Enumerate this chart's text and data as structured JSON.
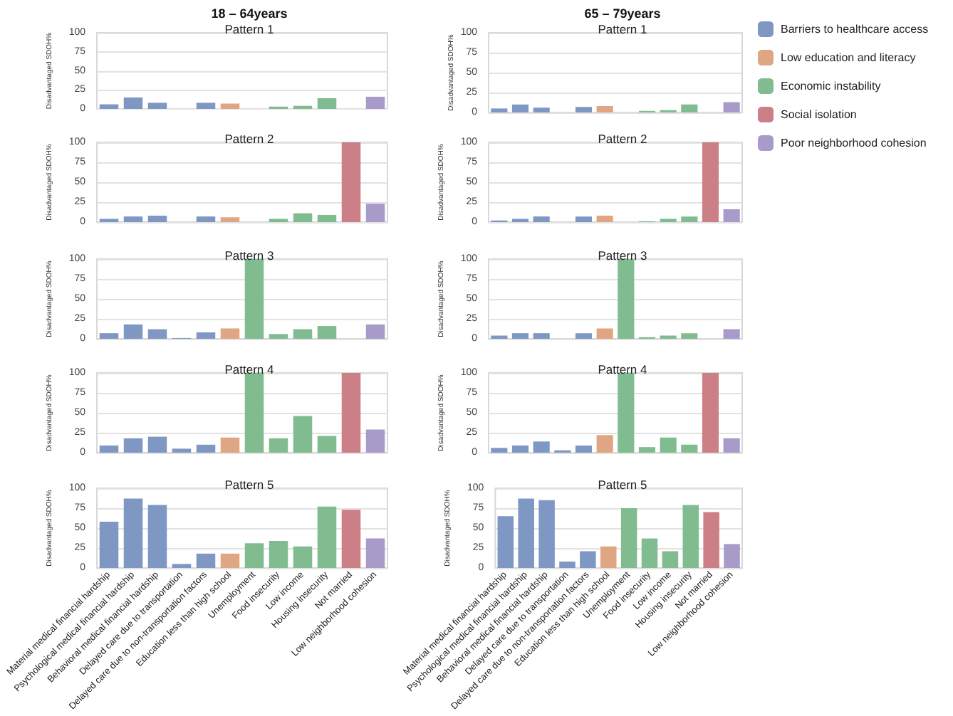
{
  "chart_data": [
    {
      "type": "bar",
      "subtitle": "18 – 64years",
      "title": "Pattern 1",
      "ylabel": "Disadvantaged SDOH%",
      "categories": [
        null,
        null,
        null,
        null,
        null,
        null,
        null,
        null,
        null,
        null,
        null,
        null
      ],
      "ylim": [
        0,
        100
      ],
      "yticks": [
        0,
        25,
        50,
        75,
        100
      ],
      "grid": "y",
      "tick_labels": "y",
      "series": [
        {
          "color": "#7f97c3",
          "values": [
            6,
            15,
            8,
            0,
            8,
            null,
            null,
            null,
            null,
            null,
            null,
            null
          ]
        },
        {
          "color": "#e0a583",
          "values": [
            null,
            null,
            null,
            null,
            null,
            7,
            null,
            null,
            null,
            null,
            null,
            null
          ]
        },
        {
          "color": "#80bc8f",
          "values": [
            null,
            null,
            null,
            null,
            null,
            null,
            0,
            3,
            4,
            14,
            null,
            null
          ]
        },
        {
          "color": "#cc7f86",
          "values": [
            null,
            null,
            null,
            null,
            null,
            null,
            null,
            null,
            null,
            null,
            0,
            null
          ]
        },
        {
          "color": "#a89bc9",
          "values": [
            null,
            null,
            null,
            null,
            null,
            null,
            null,
            null,
            null,
            null,
            null,
            16
          ]
        }
      ]
    },
    {
      "type": "bar",
      "subtitle": "65 – 79years",
      "title": "Pattern 1",
      "ylabel": "Disadvantaged SDOH%",
      "categories": [
        null,
        null,
        null,
        null,
        null,
        null,
        null,
        null,
        null,
        null,
        null,
        null
      ],
      "ylim": [
        0,
        100
      ],
      "yticks": [
        0,
        25,
        50,
        75,
        100
      ],
      "grid": "y",
      "tick_labels": "y",
      "legend": "right",
      "series": [
        {
          "name": "Barriers to healthcare access",
          "color": "#7f97c3",
          "values": [
            5,
            10,
            6,
            0,
            7,
            null,
            null,
            null,
            null,
            null,
            null,
            null
          ]
        },
        {
          "name": "Low education and literacy",
          "color": "#e0a583",
          "values": [
            null,
            null,
            null,
            null,
            null,
            8,
            null,
            null,
            null,
            null,
            null,
            null
          ]
        },
        {
          "name": "Economic instability",
          "color": "#80bc8f",
          "values": [
            null,
            null,
            null,
            null,
            null,
            null,
            0,
            2,
            3,
            10,
            null,
            null
          ]
        },
        {
          "name": "Social isolation",
          "color": "#cc7f86",
          "values": [
            null,
            null,
            null,
            null,
            null,
            null,
            null,
            null,
            null,
            null,
            0,
            null
          ]
        },
        {
          "name": "Poor neighborhood cohesion",
          "color": "#a89bc9",
          "values": [
            null,
            null,
            null,
            null,
            null,
            null,
            null,
            null,
            null,
            null,
            null,
            13
          ]
        }
      ]
    },
    {
      "type": "bar",
      "title": "Pattern 2",
      "ylabel": "Disadvantaged SDOH%",
      "categories": [
        null,
        null,
        null,
        null,
        null,
        null,
        null,
        null,
        null,
        null,
        null,
        null
      ],
      "ylim": [
        0,
        100
      ],
      "yticks": [
        0,
        25,
        50,
        75,
        100
      ],
      "grid": "y",
      "tick_labels": "y",
      "series": [
        {
          "color": "#7f97c3",
          "values": [
            4,
            7,
            8,
            0,
            7,
            null,
            null,
            null,
            null,
            null,
            null,
            null
          ]
        },
        {
          "color": "#e0a583",
          "values": [
            null,
            null,
            null,
            null,
            null,
            6,
            null,
            null,
            null,
            null,
            null,
            null
          ]
        },
        {
          "color": "#80bc8f",
          "values": [
            null,
            null,
            null,
            null,
            null,
            null,
            0,
            4,
            11,
            9,
            null,
            null
          ]
        },
        {
          "color": "#cc7f86",
          "values": [
            null,
            null,
            null,
            null,
            null,
            null,
            null,
            null,
            null,
            null,
            100,
            null
          ]
        },
        {
          "color": "#a89bc9",
          "values": [
            null,
            null,
            null,
            null,
            null,
            null,
            null,
            null,
            null,
            null,
            null,
            23
          ]
        }
      ]
    },
    {
      "type": "bar",
      "title": "Pattern 2",
      "ylabel": "Disadvantaged SDOH%",
      "categories": [
        null,
        null,
        null,
        null,
        null,
        null,
        null,
        null,
        null,
        null,
        null,
        null
      ],
      "ylim": [
        0,
        100
      ],
      "yticks": [
        0,
        25,
        50,
        75,
        100
      ],
      "grid": "y",
      "tick_labels": "y",
      "series": [
        {
          "color": "#7f97c3",
          "values": [
            2,
            4,
            7,
            0,
            7,
            null,
            null,
            null,
            null,
            null,
            null,
            null
          ]
        },
        {
          "color": "#e0a583",
          "values": [
            null,
            null,
            null,
            null,
            null,
            8,
            null,
            null,
            null,
            null,
            null,
            null
          ]
        },
        {
          "color": "#80bc8f",
          "values": [
            null,
            null,
            null,
            null,
            null,
            null,
            0,
            1,
            4,
            7,
            null,
            null
          ]
        },
        {
          "color": "#cc7f86",
          "values": [
            null,
            null,
            null,
            null,
            null,
            null,
            null,
            null,
            null,
            null,
            100,
            null
          ]
        },
        {
          "color": "#a89bc9",
          "values": [
            null,
            null,
            null,
            null,
            null,
            null,
            null,
            null,
            null,
            null,
            null,
            16
          ]
        }
      ]
    },
    {
      "type": "bar",
      "title": "Pattern 3",
      "ylabel": "Disadvantaged SDOH%",
      "categories": [
        null,
        null,
        null,
        null,
        null,
        null,
        null,
        null,
        null,
        null,
        null,
        null
      ],
      "ylim": [
        0,
        100
      ],
      "yticks": [
        0,
        25,
        50,
        75,
        100
      ],
      "grid": "y",
      "tick_labels": "y",
      "series": [
        {
          "color": "#7f97c3",
          "values": [
            7,
            18,
            12,
            1,
            8,
            null,
            null,
            null,
            null,
            null,
            null,
            null
          ]
        },
        {
          "color": "#e0a583",
          "values": [
            null,
            null,
            null,
            null,
            null,
            13,
            null,
            null,
            null,
            null,
            null,
            null
          ]
        },
        {
          "color": "#80bc8f",
          "values": [
            null,
            null,
            null,
            null,
            null,
            null,
            100,
            6,
            12,
            16,
            null,
            null
          ]
        },
        {
          "color": "#cc7f86",
          "values": [
            null,
            null,
            null,
            null,
            null,
            null,
            null,
            null,
            null,
            null,
            0,
            null
          ]
        },
        {
          "color": "#a89bc9",
          "values": [
            null,
            null,
            null,
            null,
            null,
            null,
            null,
            null,
            null,
            null,
            null,
            18
          ]
        }
      ]
    },
    {
      "type": "bar",
      "title": "Pattern 3",
      "ylabel": "Disadvantaged SDOH%",
      "categories": [
        null,
        null,
        null,
        null,
        null,
        null,
        null,
        null,
        null,
        null,
        null,
        null
      ],
      "ylim": [
        0,
        100
      ],
      "yticks": [
        0,
        25,
        50,
        75,
        100
      ],
      "grid": "y",
      "tick_labels": "y",
      "series": [
        {
          "color": "#7f97c3",
          "values": [
            4,
            7,
            7,
            0,
            7,
            null,
            null,
            null,
            null,
            null,
            null,
            null
          ]
        },
        {
          "color": "#e0a583",
          "values": [
            null,
            null,
            null,
            null,
            null,
            13,
            null,
            null,
            null,
            null,
            null,
            null
          ]
        },
        {
          "color": "#80bc8f",
          "values": [
            null,
            null,
            null,
            null,
            null,
            null,
            100,
            2,
            4,
            7,
            null,
            null
          ]
        },
        {
          "color": "#cc7f86",
          "values": [
            null,
            null,
            null,
            null,
            null,
            null,
            null,
            null,
            null,
            null,
            0,
            null
          ]
        },
        {
          "color": "#a89bc9",
          "values": [
            null,
            null,
            null,
            null,
            null,
            null,
            null,
            null,
            null,
            null,
            null,
            12
          ]
        }
      ]
    },
    {
      "type": "bar",
      "title": "Pattern 4",
      "ylabel": "Disadvantaged SDOH%",
      "categories": [
        null,
        null,
        null,
        null,
        null,
        null,
        null,
        null,
        null,
        null,
        null,
        null
      ],
      "ylim": [
        0,
        100
      ],
      "yticks": [
        0,
        25,
        50,
        75,
        100
      ],
      "grid": "y",
      "tick_labels": "y",
      "series": [
        {
          "color": "#7f97c3",
          "values": [
            9,
            18,
            20,
            5,
            10,
            null,
            null,
            null,
            null,
            null,
            null,
            null
          ]
        },
        {
          "color": "#e0a583",
          "values": [
            null,
            null,
            null,
            null,
            null,
            19,
            null,
            null,
            null,
            null,
            null,
            null
          ]
        },
        {
          "color": "#80bc8f",
          "values": [
            null,
            null,
            null,
            null,
            null,
            null,
            100,
            18,
            46,
            21,
            null,
            null
          ]
        },
        {
          "color": "#cc7f86",
          "values": [
            null,
            null,
            null,
            null,
            null,
            null,
            null,
            null,
            null,
            null,
            100,
            null
          ]
        },
        {
          "color": "#a89bc9",
          "values": [
            null,
            null,
            null,
            null,
            null,
            null,
            null,
            null,
            null,
            null,
            null,
            29
          ]
        }
      ]
    },
    {
      "type": "bar",
      "title": "Pattern 4",
      "ylabel": "Disadvantaged SDOH%",
      "categories": [
        null,
        null,
        null,
        null,
        null,
        null,
        null,
        null,
        null,
        null,
        null,
        null
      ],
      "ylim": [
        0,
        100
      ],
      "yticks": [
        0,
        25,
        50,
        75,
        100
      ],
      "grid": "y",
      "tick_labels": "y",
      "series": [
        {
          "color": "#7f97c3",
          "values": [
            6,
            9,
            14,
            3,
            9,
            null,
            null,
            null,
            null,
            null,
            null,
            null
          ]
        },
        {
          "color": "#e0a583",
          "values": [
            null,
            null,
            null,
            null,
            null,
            22,
            null,
            null,
            null,
            null,
            null,
            null
          ]
        },
        {
          "color": "#80bc8f",
          "values": [
            null,
            null,
            null,
            null,
            null,
            null,
            100,
            7,
            19,
            10,
            null,
            null
          ]
        },
        {
          "color": "#cc7f86",
          "values": [
            null,
            null,
            null,
            null,
            null,
            null,
            null,
            null,
            null,
            null,
            100,
            null
          ]
        },
        {
          "color": "#a89bc9",
          "values": [
            null,
            null,
            null,
            null,
            null,
            null,
            null,
            null,
            null,
            null,
            null,
            18
          ]
        }
      ]
    },
    {
      "type": "bar",
      "title": "Pattern 5",
      "ylabel": "Disadvantaged SDOH%",
      "categories": [
        "Material medical financial hardship",
        "Psychological medical financial hardship",
        "Behavioral medical financial hardship",
        "Delayed care due to transportation",
        "Delayed care due to non-transportation factors",
        "Education less than high school",
        "Unemployment",
        "Food insecurity",
        "Low income",
        "Housing insecurity",
        "Not married",
        "Low neighborhood cohesion"
      ],
      "ylim": [
        0,
        100
      ],
      "yticks": [
        0,
        25,
        50,
        75,
        100
      ],
      "grid": "y",
      "series": [
        {
          "color": "#7f97c3",
          "values": [
            58,
            87,
            79,
            5,
            18,
            null,
            null,
            null,
            null,
            null,
            null,
            null
          ]
        },
        {
          "color": "#e0a583",
          "values": [
            null,
            null,
            null,
            null,
            null,
            18,
            null,
            null,
            null,
            null,
            null,
            null
          ]
        },
        {
          "color": "#80bc8f",
          "values": [
            null,
            null,
            null,
            null,
            null,
            null,
            31,
            34,
            27,
            77,
            null,
            null
          ]
        },
        {
          "color": "#cc7f86",
          "values": [
            null,
            null,
            null,
            null,
            null,
            null,
            null,
            null,
            null,
            null,
            73,
            null
          ]
        },
        {
          "color": "#a89bc9",
          "values": [
            null,
            null,
            null,
            null,
            null,
            null,
            null,
            null,
            null,
            null,
            null,
            37
          ]
        }
      ]
    },
    {
      "type": "bar",
      "title": "Pattern 5",
      "ylabel": "Disadvantaged SDOH%",
      "categories": [
        "Material medical financial hardship",
        "Psychological medical financial hardship",
        "Behavioral medical financial hardship",
        "Delayed care due to transportation",
        "Delayed care due to non-transportation factors",
        "Education less than high school",
        "Unemployment",
        "Food insecurity",
        "Low income",
        "Housing insecurity",
        "Not married",
        "Low neighborhood cohesion"
      ],
      "ylim": [
        0,
        100
      ],
      "yticks": [
        0,
        25,
        50,
        75,
        100
      ],
      "grid": "y",
      "series": [
        {
          "color": "#7f97c3",
          "values": [
            65,
            87,
            85,
            8,
            21,
            null,
            null,
            null,
            null,
            null,
            null,
            null
          ]
        },
        {
          "color": "#e0a583",
          "values": [
            null,
            null,
            null,
            null,
            null,
            27,
            null,
            null,
            null,
            null,
            null,
            null
          ]
        },
        {
          "color": "#80bc8f",
          "values": [
            null,
            null,
            null,
            null,
            null,
            null,
            75,
            37,
            21,
            79,
            null,
            null
          ]
        },
        {
          "color": "#cc7f86",
          "values": [
            null,
            null,
            null,
            null,
            null,
            null,
            null,
            null,
            null,
            null,
            70,
            null
          ]
        },
        {
          "color": "#a89bc9",
          "values": [
            null,
            null,
            null,
            null,
            null,
            null,
            null,
            null,
            null,
            null,
            null,
            30
          ]
        }
      ]
    }
  ]
}
